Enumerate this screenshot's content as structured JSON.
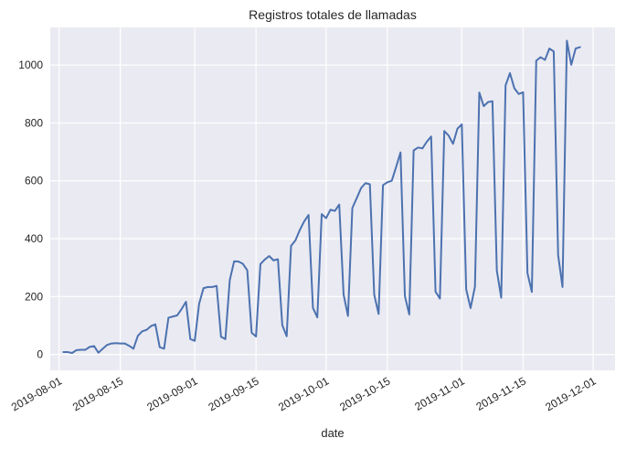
{
  "chart_data": {
    "type": "line",
    "title": "Registros totales de llamadas",
    "xlabel": "date",
    "ylabel": "",
    "x_tick_labels": [
      "2019-08-01",
      "2019-08-15",
      "2019-09-01",
      "2019-09-15",
      "2019-10-01",
      "2019-10-15",
      "2019-11-01",
      "2019-11-15",
      "2019-12-01"
    ],
    "x_ticks": [
      "2019-08-01",
      "2019-08-15",
      "2019-09-01",
      "2019-09-15",
      "2019-10-01",
      "2019-10-15",
      "2019-11-01",
      "2019-11-15",
      "2019-12-01"
    ],
    "y_ticks": [
      0,
      200,
      400,
      600,
      800,
      1000
    ],
    "xlim": [
      "2019-07-30",
      "2019-12-06"
    ],
    "ylim": [
      -55,
      1130
    ],
    "grid": true,
    "colors": {
      "background": "#eaeaf2",
      "grid": "#ffffff",
      "line": "#4c72b0",
      "text": "#262626"
    },
    "series": [
      {
        "x": [
          "2019-08-02",
          "2019-08-03",
          "2019-08-04",
          "2019-08-05",
          "2019-08-06",
          "2019-08-07",
          "2019-08-08",
          "2019-08-09",
          "2019-08-10",
          "2019-08-11",
          "2019-08-12",
          "2019-08-13",
          "2019-08-14",
          "2019-08-15",
          "2019-08-16",
          "2019-08-17",
          "2019-08-18",
          "2019-08-19",
          "2019-08-20",
          "2019-08-21",
          "2019-08-22",
          "2019-08-23",
          "2019-08-24",
          "2019-08-25",
          "2019-08-26",
          "2019-08-27",
          "2019-08-28",
          "2019-08-29",
          "2019-08-30",
          "2019-08-31",
          "2019-09-01",
          "2019-09-02",
          "2019-09-03",
          "2019-09-04",
          "2019-09-05",
          "2019-09-06",
          "2019-09-07",
          "2019-09-08",
          "2019-09-09",
          "2019-09-10",
          "2019-09-11",
          "2019-09-12",
          "2019-09-13",
          "2019-09-14",
          "2019-09-15",
          "2019-09-16",
          "2019-09-17",
          "2019-09-18",
          "2019-09-19",
          "2019-09-20",
          "2019-09-21",
          "2019-09-22",
          "2019-09-23",
          "2019-09-24",
          "2019-09-25",
          "2019-09-26",
          "2019-09-27",
          "2019-09-28",
          "2019-09-29",
          "2019-09-30",
          "2019-10-01",
          "2019-10-02",
          "2019-10-03",
          "2019-10-04",
          "2019-10-05",
          "2019-10-06",
          "2019-10-07",
          "2019-10-08",
          "2019-10-09",
          "2019-10-10",
          "2019-10-11",
          "2019-10-12",
          "2019-10-13",
          "2019-10-14",
          "2019-10-15",
          "2019-10-16",
          "2019-10-17",
          "2019-10-18",
          "2019-10-19",
          "2019-10-20",
          "2019-10-21",
          "2019-10-22",
          "2019-10-23",
          "2019-10-24",
          "2019-10-25",
          "2019-10-26",
          "2019-10-27",
          "2019-10-28",
          "2019-10-29",
          "2019-10-30",
          "2019-10-31",
          "2019-11-01",
          "2019-11-02",
          "2019-11-03",
          "2019-11-04",
          "2019-11-05",
          "2019-11-06",
          "2019-11-07",
          "2019-11-08",
          "2019-11-09",
          "2019-11-10",
          "2019-11-11",
          "2019-11-12",
          "2019-11-13",
          "2019-11-14",
          "2019-11-15",
          "2019-11-16",
          "2019-11-17",
          "2019-11-18",
          "2019-11-19",
          "2019-11-20",
          "2019-11-21",
          "2019-11-22",
          "2019-11-23",
          "2019-11-24",
          "2019-11-25",
          "2019-11-26",
          "2019-11-27",
          "2019-11-28"
        ],
        "values": [
          8,
          8,
          5,
          15,
          16,
          16,
          26,
          29,
          6,
          20,
          33,
          38,
          39,
          38,
          38,
          30,
          20,
          64,
          80,
          85,
          98,
          104,
          25,
          20,
          127,
          131,
          135,
          157,
          182,
          53,
          47,
          175,
          229,
          233,
          233,
          237,
          61,
          53,
          257,
          322,
          321,
          313,
          291,
          75,
          62,
          312,
          328,
          340,
          325,
          329,
          101,
          63,
          375,
          394,
          430,
          460,
          482,
          161,
          128,
          485,
          471,
          500,
          496,
          518,
          207,
          133,
          506,
          540,
          575,
          592,
          588,
          206,
          140,
          585,
          595,
          600,
          648,
          698,
          202,
          138,
          705,
          715,
          712,
          735,
          753,
          217,
          193,
          772,
          756,
          728,
          780,
          795,
          225,
          160,
          234,
          905,
          858,
          872,
          875,
          290,
          196,
          930,
          972,
          920,
          900,
          906,
          281,
          216,
          1015,
          1027,
          1018,
          1057,
          1047,
          344,
          233,
          1084,
          1001,
          1057,
          1062
        ]
      }
    ]
  }
}
